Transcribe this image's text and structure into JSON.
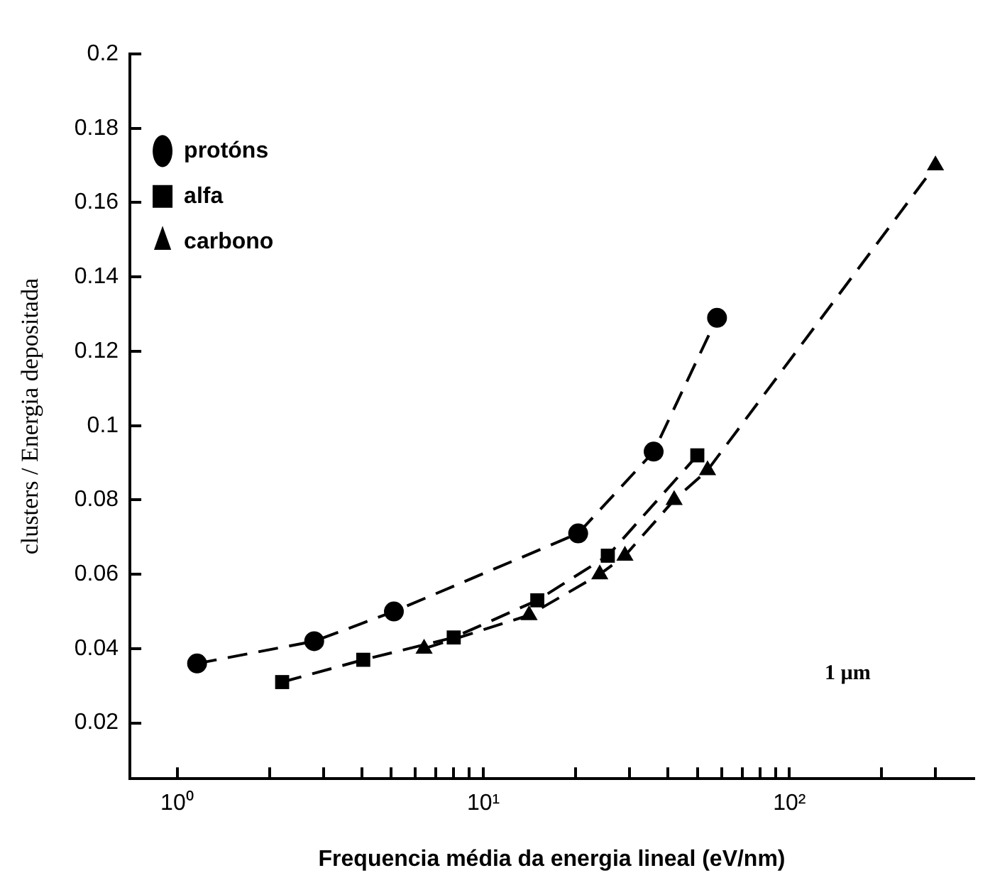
{
  "chart_data": {
    "type": "line",
    "xlabel": "Frequencia média da energia lineal (eV/nm)",
    "ylabel": "clusters / Energia depositada",
    "annotations": [
      "1 µm"
    ],
    "log": "x",
    "xlim": [
      0.7,
      400
    ],
    "ylim": [
      0.005,
      0.2
    ],
    "xticks": [
      {
        "value": 1,
        "label": "10⁰"
      },
      {
        "value": 2,
        "label": null
      },
      {
        "value": 3,
        "label": null
      },
      {
        "value": 4,
        "label": null
      },
      {
        "value": 5,
        "label": null
      },
      {
        "value": 6,
        "label": null
      },
      {
        "value": 7,
        "label": null
      },
      {
        "value": 8,
        "label": null
      },
      {
        "value": 9,
        "label": null
      },
      {
        "value": 10,
        "label": "10¹"
      },
      {
        "value": 20,
        "label": null
      },
      {
        "value": 30,
        "label": null
      },
      {
        "value": 40,
        "label": null
      },
      {
        "value": 50,
        "label": null
      },
      {
        "value": 60,
        "label": null
      },
      {
        "value": 70,
        "label": null
      },
      {
        "value": 80,
        "label": null
      },
      {
        "value": 90,
        "label": null
      },
      {
        "value": 100,
        "label": "10²"
      },
      {
        "value": 200,
        "label": null
      },
      {
        "value": 300,
        "label": null
      }
    ],
    "yticks": [
      0.02,
      0.04,
      0.06,
      0.08,
      0.1,
      0.12,
      0.14,
      0.16,
      0.18,
      0.2
    ],
    "grid": false,
    "legend": "top left",
    "line_style": "dashed",
    "series": [
      {
        "name": "protóns",
        "color": "#000000",
        "marker": "circle",
        "x": [
          1.16,
          2.8,
          5.1,
          20.4,
          36,
          58
        ],
        "values": [
          0.036,
          0.042,
          0.05,
          0.071,
          0.093,
          0.129
        ]
      },
      {
        "name": "alfa",
        "color": "#000000",
        "marker": "square",
        "x": [
          2.2,
          4.05,
          8,
          15,
          25.5,
          50
        ],
        "values": [
          0.031,
          0.037,
          0.043,
          0.053,
          0.065,
          0.092
        ]
      },
      {
        "name": "carbono",
        "color": "#000000",
        "marker": "triangle",
        "x": [
          6.4,
          14.1,
          24,
          29,
          42,
          54,
          300
        ],
        "values": [
          0.04,
          0.049,
          0.06,
          0.065,
          0.08,
          0.088,
          0.17
        ]
      }
    ]
  }
}
